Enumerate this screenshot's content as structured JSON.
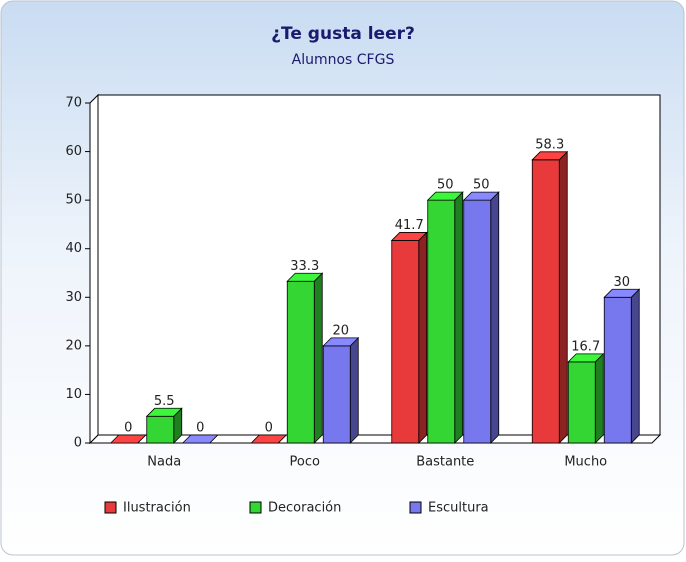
{
  "chart_data": {
    "type": "bar3d",
    "title": "¿Te gusta leer?",
    "subtitle": "Alumnos CFGS",
    "categories": [
      "Nada",
      "Poco",
      "Bastante",
      "Mucho"
    ],
    "series": [
      {
        "name": "Ilustración",
        "color": "#e83a3a",
        "values": [
          0,
          0,
          41.7,
          58.3
        ]
      },
      {
        "name": "Decoración",
        "color": "#33d633",
        "values": [
          5.5,
          33.3,
          50,
          16.7
        ]
      },
      {
        "name": "Escultura",
        "color": "#7777ee",
        "values": [
          0,
          20,
          50,
          30
        ]
      }
    ],
    "ylim": [
      0,
      70
    ],
    "yticks": [
      0,
      10,
      20,
      30,
      40,
      50,
      60,
      70
    ],
    "legend": "bottom"
  }
}
